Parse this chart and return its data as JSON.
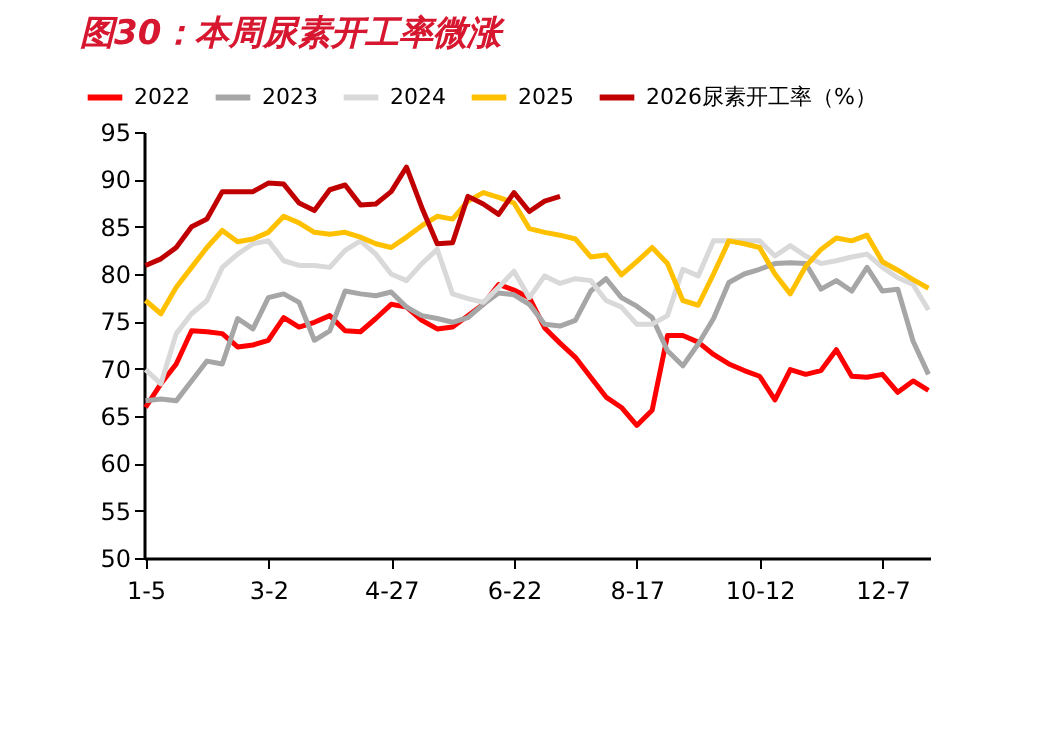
{
  "chart_data": {
    "type": "line",
    "title": "图30：本周尿素开工率微涨",
    "categories": [
      "1-5",
      null,
      null,
      null,
      null,
      null,
      null,
      null,
      "3-2",
      null,
      null,
      null,
      null,
      null,
      null,
      null,
      "4-27",
      null,
      null,
      null,
      null,
      null,
      null,
      null,
      "6-22",
      null,
      null,
      null,
      null,
      null,
      null,
      null,
      "8-17",
      null,
      null,
      null,
      null,
      null,
      null,
      null,
      "10-12",
      null,
      null,
      null,
      null,
      null,
      null,
      null,
      "12-7",
      null,
      null,
      null
    ],
    "series": [
      {
        "name": "2022",
        "color": "#ff0000",
        "values": [
          65.9,
          68.4,
          70.5,
          74,
          73.9,
          73.7,
          72.3,
          72.5,
          73,
          75.4,
          74.4,
          74.9,
          75.6,
          74,
          73.9,
          75.3,
          76.8,
          76.5,
          75.1,
          74.2,
          74.4,
          75.6,
          76.8,
          78.9,
          78.3,
          77.5,
          74.3,
          72.7,
          71.2,
          69.1,
          67,
          65.9,
          64,
          65.6,
          73.5,
          73.5,
          72.8,
          71.5,
          70.5,
          69.8,
          69.2,
          66.7,
          69.9,
          69.4,
          69.8,
          72,
          69.2,
          69.1,
          69.4,
          67.5,
          68.7,
          67.7
        ]
      },
      {
        "name": "2023",
        "color": "#a6a6a6",
        "values": [
          66.6,
          66.8,
          66.6,
          68.7,
          70.8,
          70.5,
          75.3,
          74.2,
          77.5,
          77.9,
          77,
          73,
          74,
          78.2,
          77.9,
          77.7,
          78.1,
          76.5,
          75.6,
          75.3,
          74.9,
          75.4,
          76.8,
          78,
          77.8,
          76.8,
          74.7,
          74.5,
          75.1,
          78.2,
          79.5,
          77.5,
          76.6,
          75.4,
          71.9,
          70.3,
          72.6,
          75.3,
          79.1,
          80,
          80.5,
          81.1,
          81.2,
          81.1,
          78.4,
          79.3,
          78.2,
          80.7,
          78.2,
          78.4,
          72.9,
          69.4
        ]
      },
      {
        "name": "2024",
        "color": "#d9d9d9",
        "values": [
          69.9,
          68.4,
          73.7,
          75.8,
          77.2,
          80.7,
          82.1,
          83.2,
          83.5,
          81.4,
          80.9,
          80.9,
          80.7,
          82.5,
          83.5,
          82.1,
          80,
          79.3,
          81.1,
          82.6,
          77.9,
          77.4,
          77,
          78.6,
          80.3,
          77.5,
          79.8,
          79,
          79.5,
          79.3,
          77.2,
          76.5,
          74.7,
          74.7,
          75.6,
          80.5,
          79.8,
          83.5,
          83.5,
          83.5,
          83.5,
          81.9,
          83,
          81.9,
          81.1,
          81.4,
          81.8,
          82.1,
          80.7,
          79.6,
          78.9,
          76.2
        ]
      },
      {
        "name": "2025",
        "color": "#ffc000",
        "values": [
          77.2,
          75.8,
          78.6,
          80.7,
          82.8,
          84.6,
          83.4,
          83.7,
          84.4,
          86.1,
          85.4,
          84.4,
          84.2,
          84.4,
          83.9,
          83.2,
          82.8,
          83.9,
          85.1,
          86.1,
          85.8,
          87.7,
          88.6,
          88.1,
          87.5,
          84.8,
          84.4,
          84.1,
          83.7,
          81.8,
          82,
          79.9,
          81.3,
          82.8,
          81.1,
          77.2,
          76.7,
          80,
          83.5,
          83.2,
          82.8,
          80,
          77.9,
          80.8,
          82.6,
          83.8,
          83.5,
          84.1,
          81.3,
          80.4,
          79.4,
          78.5
        ]
      },
      {
        "name": "2026尿素开工率（%）",
        "color": "#c00000",
        "values": [
          80.9,
          81.6,
          82.8,
          85,
          85.8,
          88.7,
          88.7,
          88.7,
          89.6,
          89.5,
          87.5,
          86.7,
          88.9,
          89.4,
          87.3,
          87.4,
          88.7,
          91.3,
          87,
          83.2,
          83.3,
          88.2,
          87.4,
          86.3,
          88.6,
          86.6,
          87.7,
          88.2,
          null,
          null,
          null,
          null,
          null,
          null,
          null,
          null,
          null,
          null,
          null,
          null,
          null,
          null,
          null,
          null,
          null,
          null,
          null,
          null,
          null,
          null,
          null,
          null
        ]
      }
    ],
    "ylim": [
      50,
      95
    ],
    "yticks": [
      50,
      55,
      60,
      65,
      70,
      75,
      80,
      85,
      90,
      95
    ],
    "grid": false,
    "legend": "top",
    "marker": "none",
    "line_style": "solid"
  }
}
